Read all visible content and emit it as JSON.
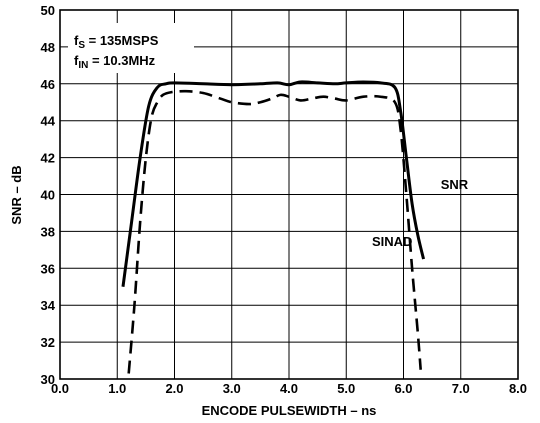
{
  "chart_data": {
    "type": "line",
    "xlabel": "ENCODE PULSEWIDTH – ns",
    "ylabel": "SNR – dB",
    "xlim": [
      0.0,
      8.0
    ],
    "ylim": [
      30,
      50
    ],
    "xticks": [
      "0.0",
      "1.0",
      "2.0",
      "3.0",
      "4.0",
      "5.0",
      "6.0",
      "7.0",
      "8.0"
    ],
    "yticks": [
      "30",
      "32",
      "34",
      "36",
      "38",
      "40",
      "42",
      "44",
      "46",
      "48",
      "50"
    ],
    "grid": true,
    "annotation": {
      "fs_main": "f",
      "fs_sub": "S",
      "fs_value": " = 135MSPS",
      "fin_main": "f",
      "fin_sub": "IN",
      "fin_value": " = 10.3MHz"
    },
    "series": [
      {
        "name": "SNR",
        "style": "solid",
        "x": [
          1.1,
          1.25,
          1.4,
          1.55,
          1.7,
          1.85,
          2.0,
          2.5,
          3.0,
          3.5,
          3.8,
          4.0,
          4.2,
          4.5,
          4.8,
          5.0,
          5.3,
          5.6,
          5.85,
          5.95,
          6.05,
          6.15,
          6.25,
          6.35
        ],
        "values": [
          35.0,
          38.5,
          42.0,
          44.8,
          45.8,
          46.0,
          46.05,
          46.0,
          45.95,
          46.0,
          46.05,
          45.95,
          46.1,
          46.05,
          46.0,
          46.05,
          46.1,
          46.05,
          45.8,
          44.5,
          42.0,
          39.5,
          37.8,
          36.5
        ]
      },
      {
        "name": "SINAD",
        "style": "dashed",
        "x": [
          1.2,
          1.3,
          1.4,
          1.5,
          1.6,
          1.7,
          1.8,
          1.95,
          2.2,
          2.5,
          2.8,
          3.0,
          3.3,
          3.5,
          3.7,
          3.85,
          4.0,
          4.2,
          4.4,
          4.6,
          4.8,
          5.0,
          5.3,
          5.6,
          5.85,
          5.95,
          6.05,
          6.15,
          6.25,
          6.3
        ],
        "values": [
          30.3,
          34.0,
          38.5,
          42.0,
          44.2,
          45.0,
          45.4,
          45.55,
          45.6,
          45.5,
          45.2,
          45.0,
          44.9,
          45.0,
          45.2,
          45.4,
          45.3,
          45.1,
          45.2,
          45.3,
          45.2,
          45.1,
          45.3,
          45.3,
          45.0,
          43.5,
          40.0,
          36.0,
          32.5,
          30.5
        ]
      }
    ],
    "series_labels": [
      {
        "name": "SNR",
        "x": 6.65,
        "y": 40.3
      },
      {
        "name": "SINAD",
        "x": 5.45,
        "y": 37.2
      }
    ]
  }
}
